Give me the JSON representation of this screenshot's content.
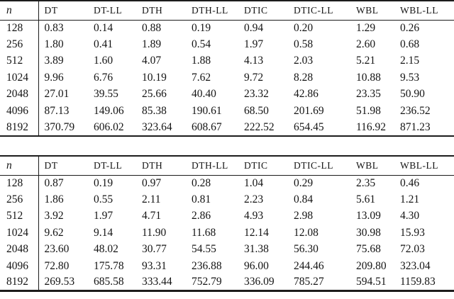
{
  "page": {
    "background_color": "#ffffff",
    "text_color": "#161616",
    "rule_color": "#1c1c1c",
    "description": "Two scanned paper tables of runtimes by sample size n for methods DT, DTH, DTIC, WBL with and without LL"
  },
  "tables": [
    {
      "name": "runtime-table-top",
      "headers": [
        "n",
        "DT",
        "DT-LL",
        "DTH",
        "DTH-LL",
        "DTIC",
        "DTIC-LL",
        "WBL",
        "WBL-LL"
      ],
      "rows": [
        [
          "128",
          "0.83",
          "0.14",
          "0.88",
          "0.19",
          "0.94",
          "0.20",
          "1.29",
          "0.26"
        ],
        [
          "256",
          "1.80",
          "0.41",
          "1.89",
          "0.54",
          "1.97",
          "0.58",
          "2.60",
          "0.68"
        ],
        [
          "512",
          "3.89",
          "1.60",
          "4.07",
          "1.88",
          "4.13",
          "2.03",
          "5.21",
          "2.15"
        ],
        [
          "1024",
          "9.96",
          "6.76",
          "10.19",
          "7.62",
          "9.72",
          "8.28",
          "10.88",
          "9.53"
        ],
        [
          "2048",
          "27.01",
          "39.55",
          "25.66",
          "40.40",
          "23.32",
          "42.86",
          "23.35",
          "50.90"
        ],
        [
          "4096",
          "87.13",
          "149.06",
          "85.38",
          "190.61",
          "68.50",
          "201.69",
          "51.98",
          "236.52"
        ],
        [
          "8192",
          "370.79",
          "606.02",
          "323.64",
          "608.67",
          "222.52",
          "654.45",
          "116.92",
          "871.23"
        ]
      ]
    },
    {
      "name": "runtime-table-bottom",
      "headers": [
        "n",
        "DT",
        "DT-LL",
        "DTH",
        "DTH-LL",
        "DTIC",
        "DTIC-LL",
        "WBL",
        "WBL-LL"
      ],
      "rows": [
        [
          "128",
          "0.87",
          "0.19",
          "0.97",
          "0.28",
          "1.04",
          "0.29",
          "2.35",
          "0.46"
        ],
        [
          "256",
          "1.86",
          "0.55",
          "2.11",
          "0.81",
          "2.23",
          "0.84",
          "5.61",
          "1.21"
        ],
        [
          "512",
          "3.92",
          "1.97",
          "4.71",
          "2.86",
          "4.93",
          "2.98",
          "13.09",
          "4.30"
        ],
        [
          "1024",
          "9.62",
          "9.14",
          "11.90",
          "11.68",
          "12.14",
          "12.08",
          "30.98",
          "15.93"
        ],
        [
          "2048",
          "23.60",
          "48.02",
          "30.77",
          "54.55",
          "31.38",
          "56.30",
          "75.68",
          "72.03"
        ],
        [
          "4096",
          "72.80",
          "175.78",
          "93.31",
          "236.88",
          "96.00",
          "244.46",
          "209.80",
          "323.04"
        ],
        [
          "8192",
          "269.53",
          "685.58",
          "333.44",
          "752.79",
          "336.09",
          "785.27",
          "594.51",
          "1159.83"
        ]
      ]
    }
  ]
}
